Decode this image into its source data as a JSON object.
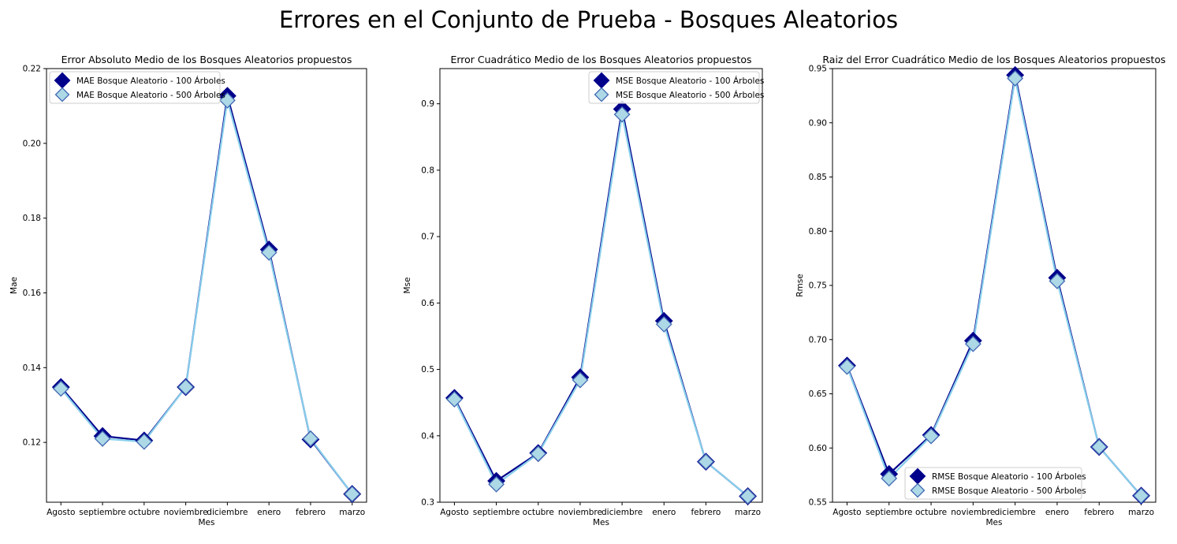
{
  "suptitle": "Errores en el Conjunto de Prueba - Bosques Aleatorios",
  "colors": {
    "series_100_fill": "#00008b",
    "series_100_line": "#00008b",
    "series_500_fill": "#add8e6",
    "series_500_line": "#87ceeb",
    "series_500_edge": "#4169b4"
  },
  "chart_data": [
    {
      "type": "line",
      "title": "Error Absoluto Medio de los Bosques Aleatorios propuestos",
      "xlabel": "Mes",
      "ylabel": "Mae",
      "categories": [
        "Agosto",
        "septiembre",
        "octubre",
        "noviembre",
        "diciembre",
        "enero",
        "febrero",
        "marzo"
      ],
      "ylim": [
        0.104,
        0.22
      ],
      "yticks": [
        "0.12",
        "0.14",
        "0.16",
        "0.18",
        "0.20",
        "0.22"
      ],
      "ytick_values": [
        0.12,
        0.14,
        0.16,
        0.18,
        0.2,
        0.22
      ],
      "legend_loc": "upper-left",
      "series": [
        {
          "name": "MAE Bosque Aleatorio - 100 Árboles",
          "values": [
            0.1348,
            0.1217,
            0.1205,
            0.1348,
            0.2127,
            0.1716,
            0.1208,
            0.1062
          ]
        },
        {
          "name": "MAE Bosque Aleatorio - 500 Árboles",
          "values": [
            0.1344,
            0.121,
            0.1202,
            0.1348,
            0.2115,
            0.1708,
            0.121,
            0.1062
          ]
        }
      ]
    },
    {
      "type": "line",
      "title": "Error Cuadrático Medio de los Bosques Aleatorios propuestos",
      "xlabel": "Mes",
      "ylabel": "Mse",
      "categories": [
        "Agosto",
        "septiembre",
        "octubre",
        "noviembre",
        "diciembre",
        "enero",
        "febrero",
        "marzo"
      ],
      "ylim": [
        0.3,
        0.953
      ],
      "yticks": [
        "0.3",
        "0.4",
        "0.5",
        "0.6",
        "0.7",
        "0.8",
        "0.9"
      ],
      "ytick_values": [
        0.3,
        0.4,
        0.5,
        0.6,
        0.7,
        0.8,
        0.9
      ],
      "legend_loc": "upper-right",
      "series": [
        {
          "name": "MSE Bosque Aleatorio - 100 Árboles",
          "values": [
            0.457,
            0.332,
            0.374,
            0.488,
            0.892,
            0.573,
            0.361,
            0.309
          ]
        },
        {
          "name": "MSE Bosque Aleatorio - 500 Árboles",
          "values": [
            0.455,
            0.327,
            0.373,
            0.484,
            0.884,
            0.568,
            0.361,
            0.309
          ]
        }
      ]
    },
    {
      "type": "line",
      "title": "Raiz del Error Cuadrático Medio de los Bosques Aleatorios propuestos",
      "xlabel": "Mes",
      "ylabel": "Rmse",
      "categories": [
        "Agosto",
        "septiembre",
        "octubre",
        "noviembre",
        "diciembre",
        "enero",
        "febrero",
        "marzo"
      ],
      "ylim": [
        0.55,
        0.95
      ],
      "yticks": [
        "0.55",
        "0.60",
        "0.65",
        "0.70",
        "0.75",
        "0.80",
        "0.85",
        "0.90",
        "0.95"
      ],
      "ytick_values": [
        0.55,
        0.6,
        0.65,
        0.7,
        0.75,
        0.8,
        0.85,
        0.9,
        0.95
      ],
      "legend_loc": "lower-center",
      "series": [
        {
          "name": "RMSE Bosque Aleatorio - 100 Árboles",
          "values": [
            0.676,
            0.576,
            0.612,
            0.699,
            0.944,
            0.757,
            0.601,
            0.556
          ]
        },
        {
          "name": "RMSE Bosque Aleatorio - 500 Árboles",
          "values": [
            0.675,
            0.572,
            0.611,
            0.696,
            0.941,
            0.754,
            0.601,
            0.556
          ]
        }
      ]
    }
  ]
}
